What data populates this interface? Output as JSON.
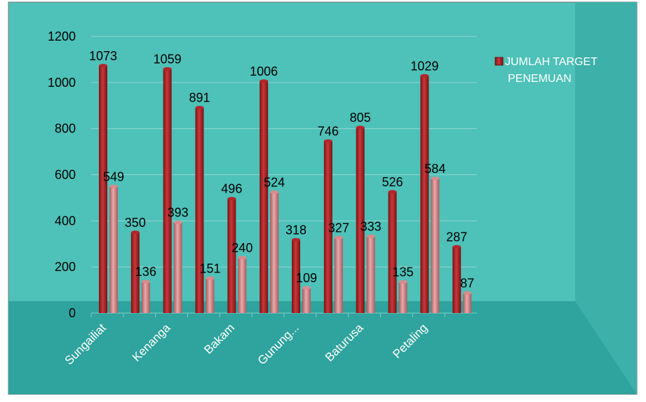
{
  "chart_data": {
    "type": "bar",
    "categories": [
      "Sungailiat",
      null,
      "Kenanga",
      null,
      "Bakam",
      null,
      "Gunung...",
      null,
      "Baturusa",
      null,
      "Petaling",
      null
    ],
    "series": [
      {
        "name": "JUMLAH TARGET PENEMUAN",
        "color": "#b3262a",
        "values": [
          1073,
          350,
          1059,
          891,
          496,
          1006,
          318,
          746,
          805,
          526,
          1029,
          287
        ]
      },
      {
        "color": "#d98a8c",
        "values": [
          549,
          136,
          393,
          151,
          240,
          524,
          109,
          327,
          333,
          135,
          584,
          87
        ]
      }
    ],
    "ylim": [
      0,
      1200
    ],
    "yticks": [
      0,
      200,
      400,
      600,
      800,
      1000,
      1200
    ],
    "grid": true,
    "legend": "right"
  }
}
